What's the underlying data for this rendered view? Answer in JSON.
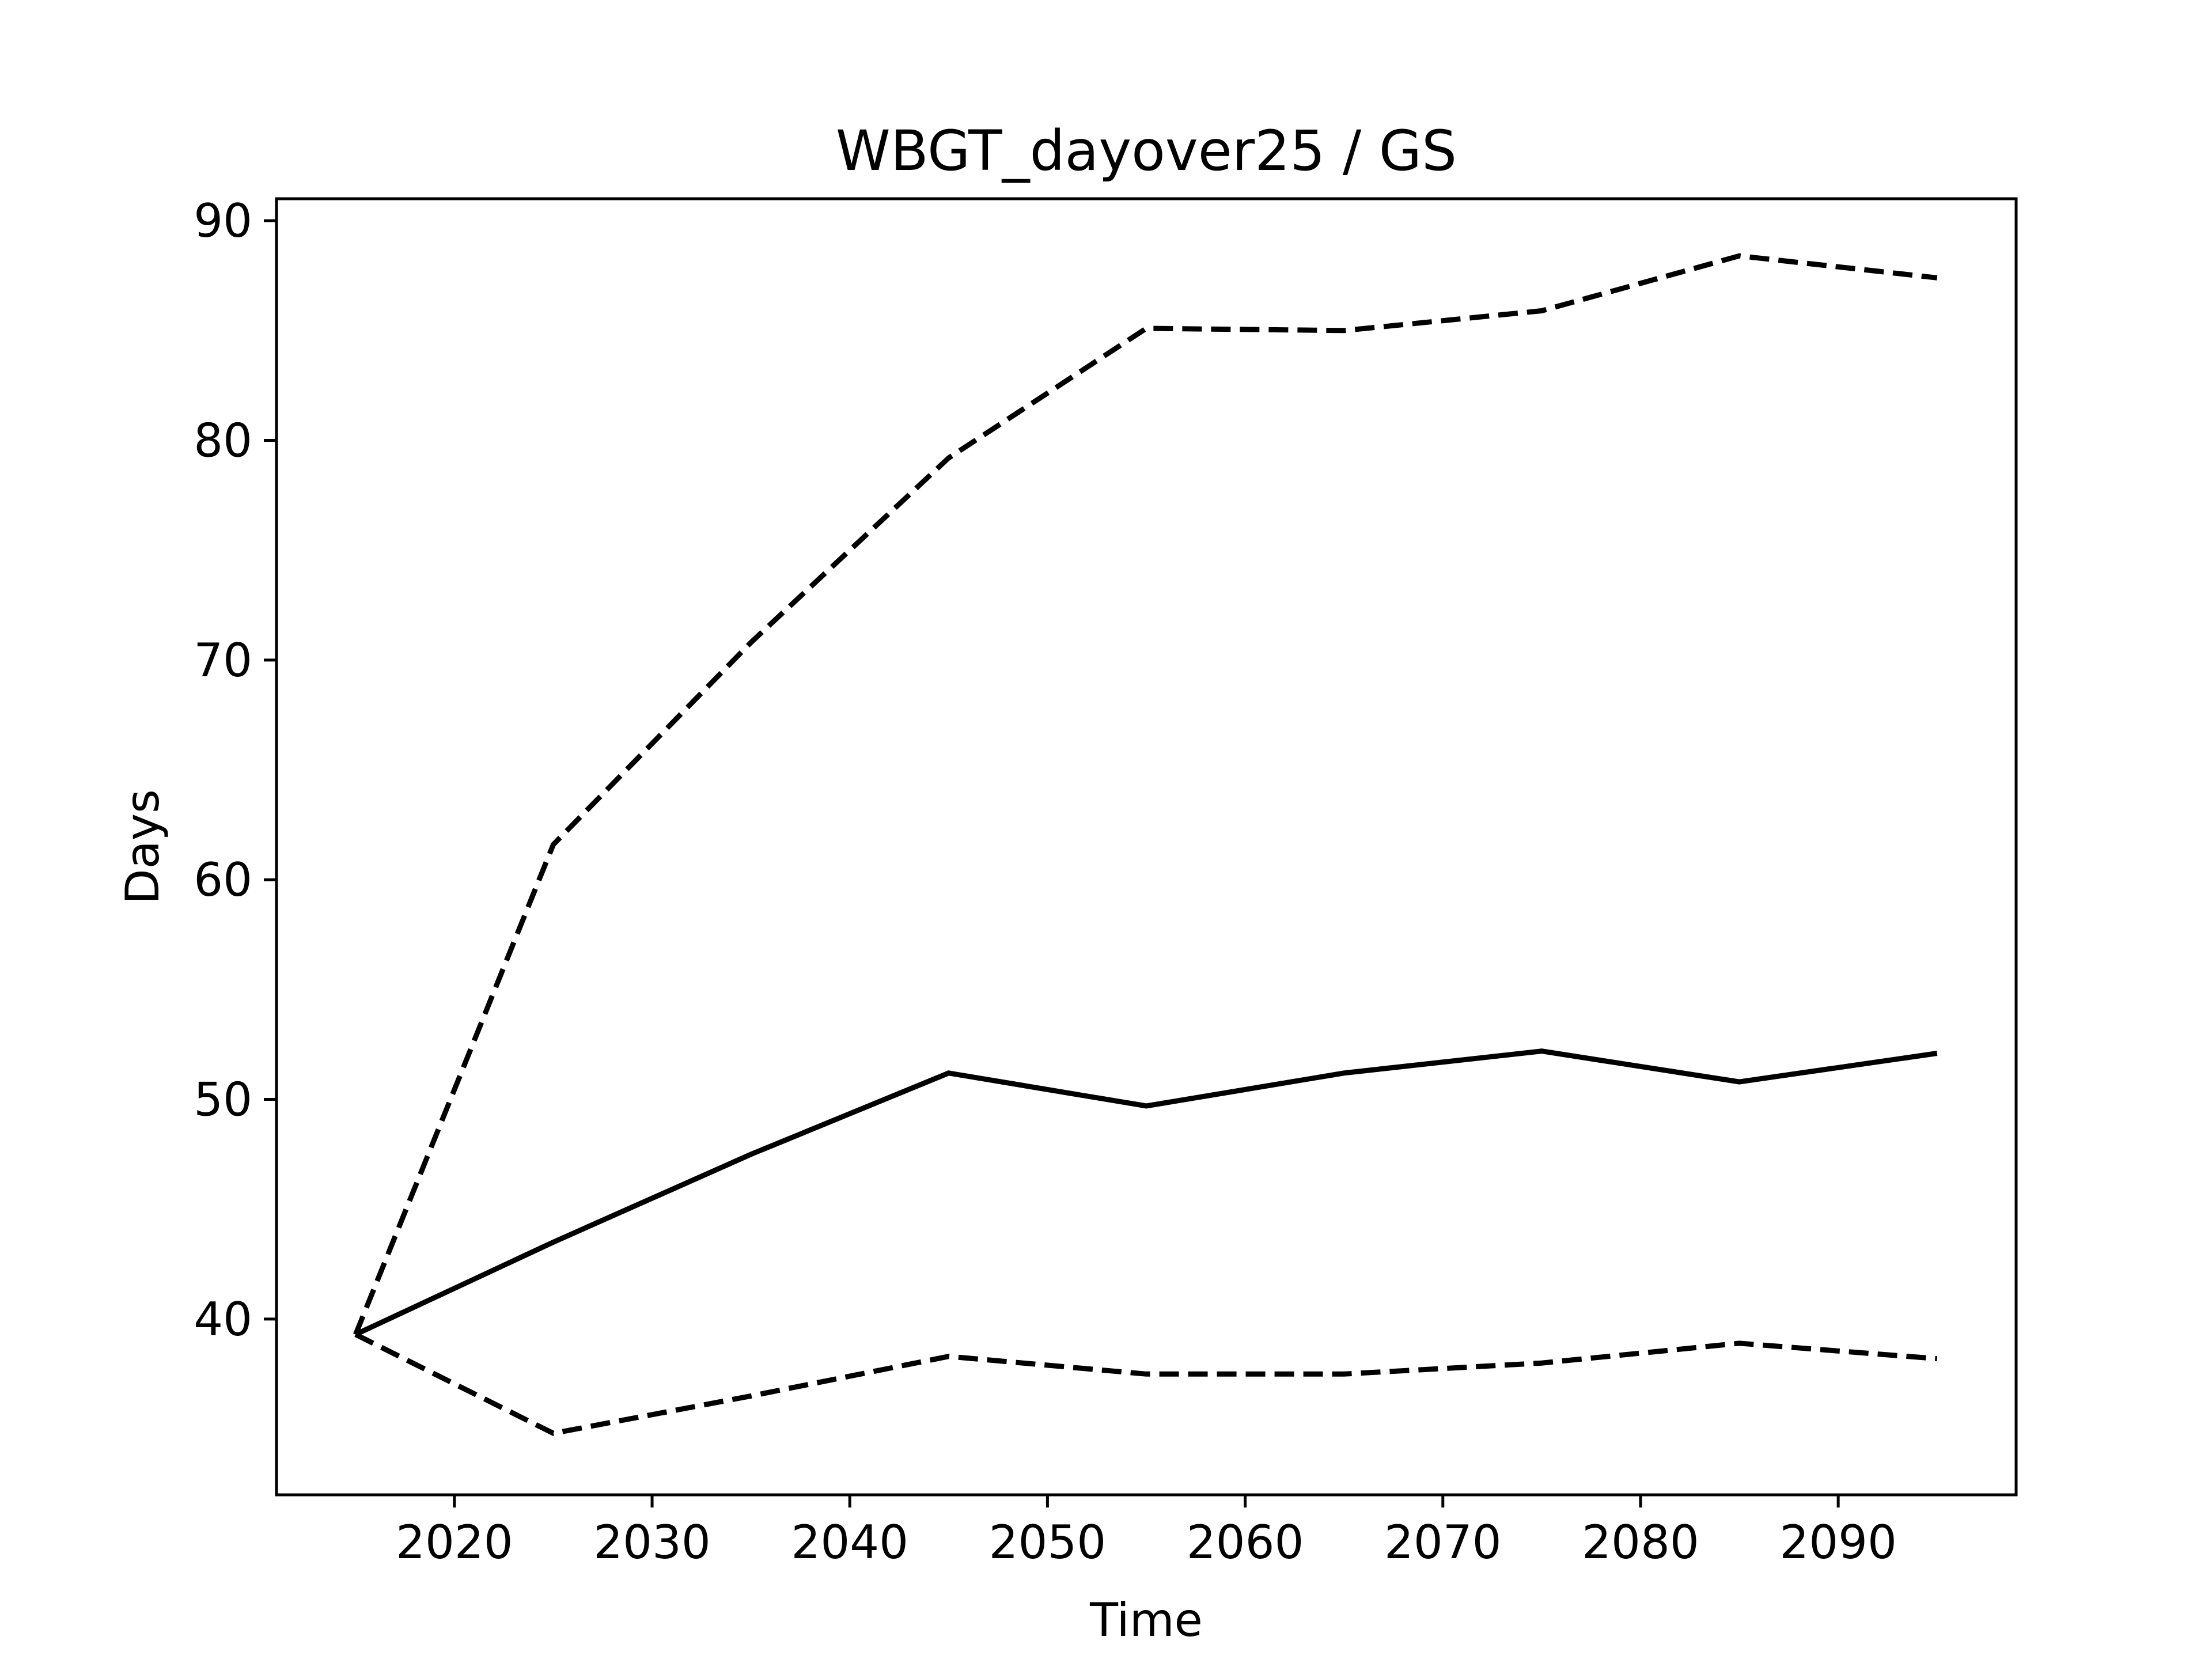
{
  "chart_data": {
    "type": "line",
    "title": "WBGT_dayover25 / GS",
    "xlabel": "Time",
    "ylabel": "Days",
    "xlim": [
      2011,
      2099
    ],
    "ylim": [
      32,
      91
    ],
    "xticks": [
      2020,
      2030,
      2040,
      2050,
      2060,
      2070,
      2080,
      2090
    ],
    "yticks": [
      40,
      50,
      60,
      70,
      80,
      90
    ],
    "grid": false,
    "legend": "none",
    "x": [
      2015,
      2025,
      2035,
      2045,
      2055,
      2065,
      2075,
      2085,
      2095
    ],
    "series": [
      {
        "style": "solid",
        "color": "#000000",
        "values": [
          39.3,
          43.5,
          47.5,
          51.2,
          49.7,
          51.2,
          52.2,
          50.8,
          52.1
        ]
      },
      {
        "style": "dashed",
        "color": "#000000",
        "values": [
          39.3,
          61.6,
          70.8,
          79.2,
          85.1,
          85.0,
          85.9,
          88.4,
          87.4
        ]
      },
      {
        "style": "dashed",
        "color": "#000000",
        "values": [
          39.3,
          34.8,
          36.5,
          38.3,
          37.5,
          37.5,
          38.0,
          38.9,
          38.2
        ]
      }
    ]
  }
}
